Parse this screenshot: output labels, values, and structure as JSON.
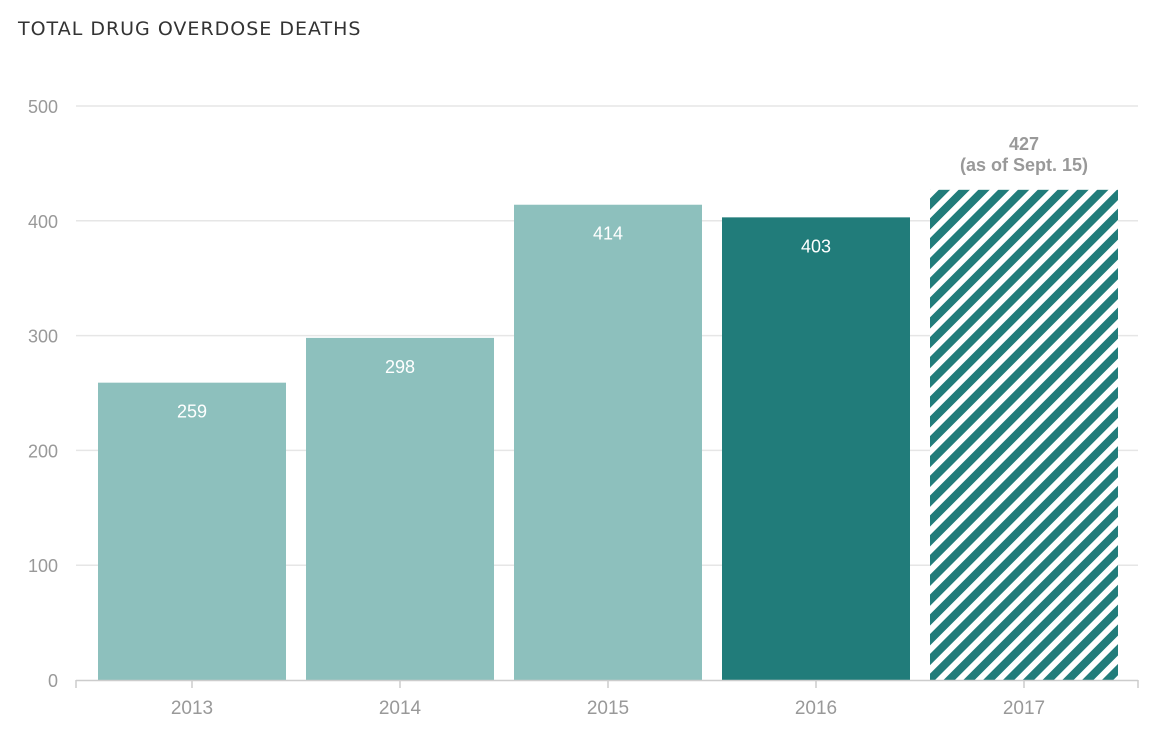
{
  "chart_data": {
    "type": "bar",
    "title": "TOTAL DRUG OVERDOSE DEATHS",
    "categories": [
      "2013",
      "2014",
      "2015",
      "2016",
      "2017"
    ],
    "values": [
      259,
      298,
      414,
      403,
      427
    ],
    "data_labels": [
      "259",
      "298",
      "414",
      "403",
      "427"
    ],
    "annotation_2017": "(as of Sept. 15)",
    "ylim": [
      0,
      500
    ],
    "yticks": [
      "0",
      "100",
      "200",
      "300",
      "400",
      "500"
    ],
    "grid": true,
    "bar_styles": [
      "light",
      "light",
      "light",
      "dark",
      "hatched"
    ],
    "colors": {
      "light": "#8dc0bd",
      "dark": "#217c7a",
      "hatch": "#217c7a",
      "light_label": "#ffffff",
      "above_label": "#999999"
    }
  }
}
